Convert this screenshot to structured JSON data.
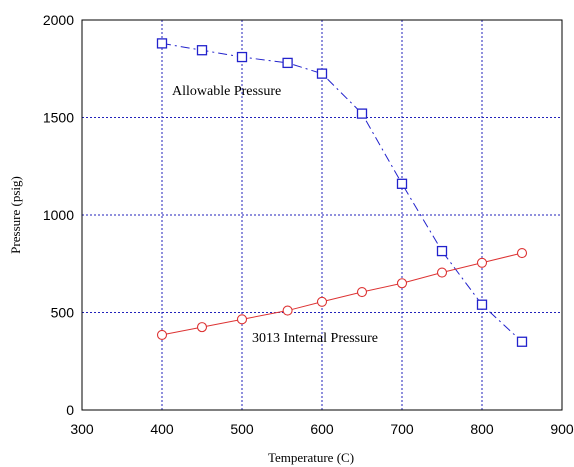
{
  "chart_data": {
    "type": "line",
    "xlabel": "Temperature (C)",
    "ylabel": "Pressure (psig)",
    "xlim": [
      300,
      900
    ],
    "ylim": [
      0,
      2000
    ],
    "xticks": [
      300,
      400,
      500,
      600,
      700,
      800,
      900
    ],
    "yticks": [
      0,
      500,
      1000,
      1500,
      2000
    ],
    "grid": true,
    "series": [
      {
        "name": "Allowable Pressure",
        "color": "#2222cc",
        "marker": "square",
        "line": "dashed",
        "points": [
          {
            "x": 400,
            "y": 1880
          },
          {
            "x": 450,
            "y": 1845
          },
          {
            "x": 500,
            "y": 1810
          },
          {
            "x": 557,
            "y": 1780
          },
          {
            "x": 600,
            "y": 1725
          },
          {
            "x": 650,
            "y": 1520
          },
          {
            "x": 700,
            "y": 1160
          },
          {
            "x": 750,
            "y": 815
          },
          {
            "x": 800,
            "y": 540
          },
          {
            "x": 850,
            "y": 350
          }
        ]
      },
      {
        "name": "3013 Internal Pressure",
        "color": "#dd3333",
        "marker": "circle",
        "line": "solid",
        "points": [
          {
            "x": 400,
            "y": 385
          },
          {
            "x": 450,
            "y": 425
          },
          {
            "x": 500,
            "y": 465
          },
          {
            "x": 557,
            "y": 510
          },
          {
            "x": 600,
            "y": 555
          },
          {
            "x": 650,
            "y": 605
          },
          {
            "x": 700,
            "y": 650
          },
          {
            "x": 750,
            "y": 705
          },
          {
            "x": 800,
            "y": 755
          },
          {
            "x": 850,
            "y": 805
          }
        ]
      }
    ]
  }
}
